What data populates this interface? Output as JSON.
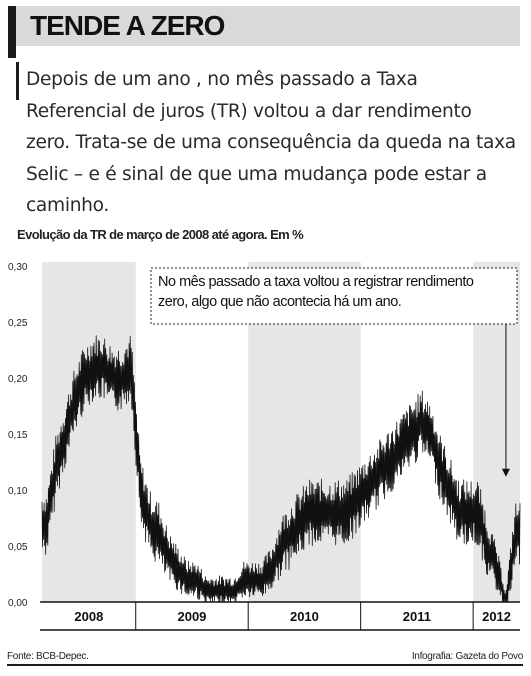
{
  "headline": "TENDE A ZERO",
  "deck": "Depois de um ano , no mês passado a Taxa Referencial de juros (TR) voltou a dar rendimento zero. Trata-se de uma consequência da queda na taxa Selic – e é sinal de que uma mudança pode estar a caminho.",
  "footer": {
    "source": "Fonte: BCB-Depec.",
    "credit": "Infografia: Gazeta do Povo"
  },
  "colors": {
    "band": "#d9d9d9",
    "shade": "#e6e6e6",
    "line": "#111111"
  },
  "chart_data": {
    "type": "line",
    "title": "",
    "subtitle": "Evolução da TR de março de 2008 até agora. Em %",
    "xlabel": "",
    "ylabel": "",
    "ylim": [
      0,
      0.3
    ],
    "y_ticks": [
      "0,30",
      "0,25",
      "0,20",
      "0,15",
      "0,10",
      "0,05",
      "0,00"
    ],
    "y_tick_values": [
      0.3,
      0.25,
      0.2,
      0.15,
      0.1,
      0.05,
      0.0
    ],
    "x_range": [
      "2008-03",
      "2012-05"
    ],
    "year_labels": [
      "2008",
      "2009",
      "2010",
      "2011",
      "2012"
    ],
    "shaded_years": [
      "2008",
      "2010",
      "2012"
    ],
    "grid": false,
    "annotation": {
      "text": "No mês passado a taxa voltou a registrar rendimento zero, algo que não acontecia há um ano.",
      "points_to": "2012-04"
    },
    "series": [
      {
        "x": [
          "2008-03",
          "2008-04",
          "2008-05",
          "2008-06",
          "2008-07",
          "2008-08",
          "2008-09",
          "2008-10",
          "2008-11",
          "2008-12",
          "2009-01",
          "2009-02",
          "2009-03",
          "2009-04",
          "2009-05",
          "2009-06",
          "2009-07",
          "2009-08",
          "2009-09",
          "2009-10",
          "2009-11",
          "2009-12",
          "2010-01",
          "2010-02",
          "2010-03",
          "2010-04",
          "2010-05",
          "2010-06",
          "2010-07",
          "2010-08",
          "2010-09",
          "2010-10",
          "2010-11",
          "2010-12",
          "2011-01",
          "2011-02",
          "2011-03",
          "2011-04",
          "2011-05",
          "2011-06",
          "2011-07",
          "2011-08",
          "2011-09",
          "2011-10",
          "2011-11",
          "2011-12",
          "2012-01",
          "2012-02",
          "2012-03",
          "2012-04",
          "2012-05"
        ],
        "y": [
          0.07,
          0.12,
          0.15,
          0.18,
          0.2,
          0.21,
          0.21,
          0.2,
          0.2,
          0.21,
          0.1,
          0.07,
          0.06,
          0.04,
          0.03,
          0.02,
          0.02,
          0.01,
          0.01,
          0.01,
          0.01,
          0.02,
          0.02,
          0.02,
          0.03,
          0.05,
          0.06,
          0.07,
          0.08,
          0.08,
          0.08,
          0.08,
          0.08,
          0.09,
          0.1,
          0.11,
          0.12,
          0.13,
          0.14,
          0.15,
          0.16,
          0.15,
          0.12,
          0.1,
          0.08,
          0.08,
          0.08,
          0.05,
          0.03,
          0.0,
          0.06
        ],
        "daily_range": 0.06
      }
    ]
  }
}
